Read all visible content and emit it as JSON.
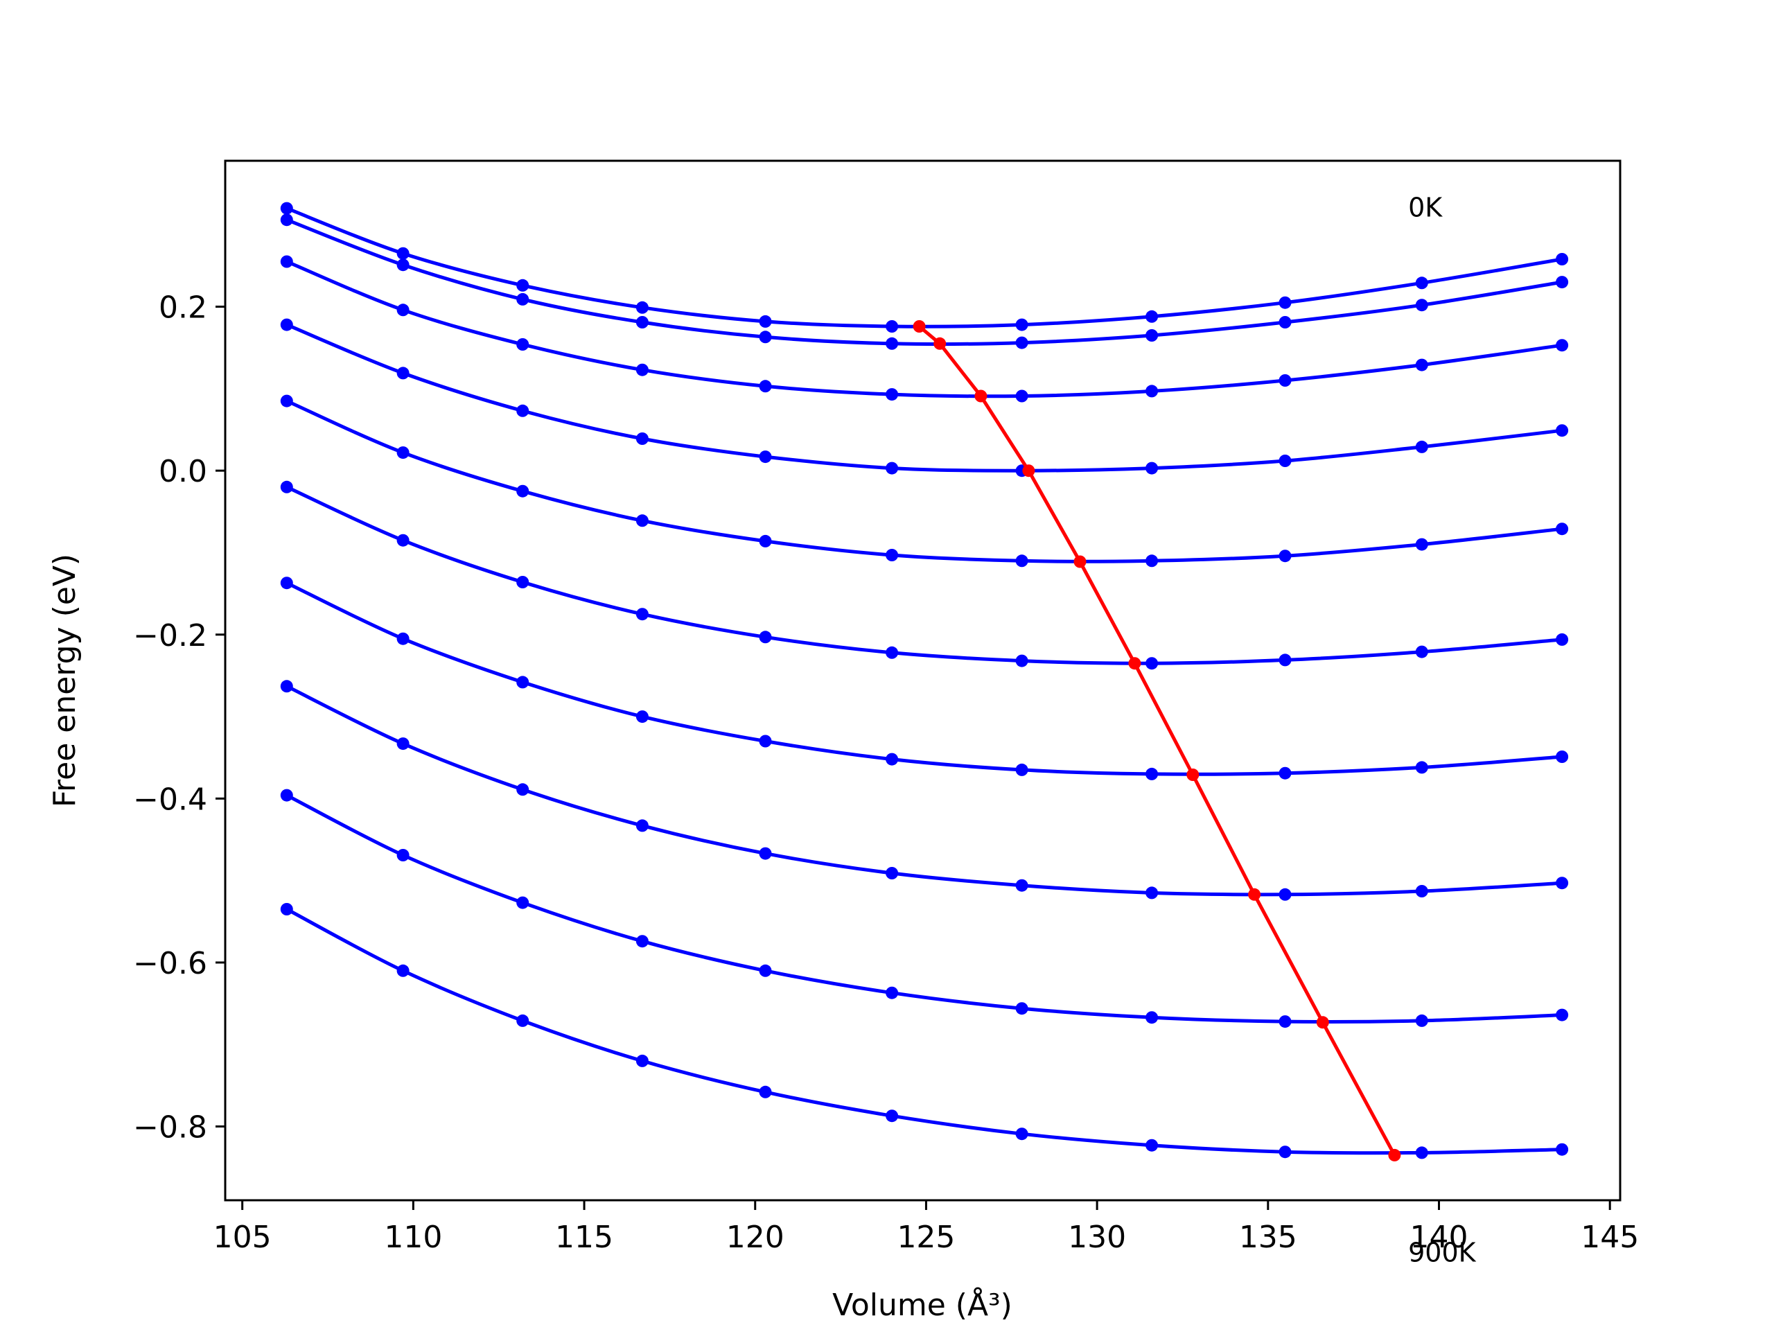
{
  "chart_data": {
    "type": "line",
    "title": "",
    "xlabel": "Volume (Å³)",
    "ylabel": "Free energy (eV)",
    "xlim": [
      104.5,
      145.3
    ],
    "ylim": [
      -0.89,
      0.378
    ],
    "xticks": [
      "105",
      "110",
      "115",
      "120",
      "125",
      "130",
      "135",
      "140",
      "145"
    ],
    "yticks": [
      "−0.8",
      "−0.6",
      "−0.4",
      "−0.2",
      "0.0",
      "0.2"
    ],
    "xtick_values": [
      105,
      110,
      115,
      120,
      125,
      130,
      135,
      140,
      145
    ],
    "ytick_values": [
      -0.8,
      -0.6,
      -0.4,
      -0.2,
      0.0,
      0.2
    ],
    "grid": false,
    "annotations": [
      {
        "text": "0K",
        "x": 139.1,
        "y": 0.31
      },
      {
        "text": "900K",
        "x": 139.1,
        "y": -0.965
      }
    ],
    "x": [
      106.3,
      109.7,
      113.2,
      116.7,
      120.3,
      124.0,
      127.8,
      131.6,
      135.5,
      139.5,
      143.6
    ],
    "series": [
      {
        "color": "#0000ff",
        "values": [
          0.32,
          0.265,
          0.226,
          0.199,
          0.182,
          0.176,
          0.178,
          0.188,
          0.205,
          0.229,
          0.258
        ]
      },
      {
        "color": "#0000ff",
        "values": [
          0.306,
          0.251,
          0.209,
          0.181,
          0.163,
          0.155,
          0.156,
          0.165,
          0.181,
          0.202,
          0.23
        ]
      },
      {
        "color": "#0000ff",
        "values": [
          0.255,
          0.196,
          0.154,
          0.123,
          0.103,
          0.093,
          0.091,
          0.097,
          0.11,
          0.129,
          0.153
        ]
      },
      {
        "color": "#0000ff",
        "values": [
          0.178,
          0.119,
          0.073,
          0.039,
          0.017,
          0.003,
          0.0,
          0.003,
          0.012,
          0.029,
          0.049
        ]
      },
      {
        "color": "#0000ff",
        "values": [
          0.085,
          0.022,
          -0.025,
          -0.061,
          -0.086,
          -0.103,
          -0.11,
          -0.11,
          -0.104,
          -0.09,
          -0.071
        ]
      },
      {
        "color": "#0000ff",
        "values": [
          -0.02,
          -0.085,
          -0.136,
          -0.175,
          -0.203,
          -0.222,
          -0.232,
          -0.235,
          -0.231,
          -0.221,
          -0.206
        ]
      },
      {
        "color": "#0000ff",
        "values": [
          -0.137,
          -0.205,
          -0.258,
          -0.3,
          -0.33,
          -0.352,
          -0.365,
          -0.37,
          -0.369,
          -0.362,
          -0.349
        ]
      },
      {
        "color": "#0000ff",
        "values": [
          -0.263,
          -0.333,
          -0.389,
          -0.433,
          -0.467,
          -0.491,
          -0.506,
          -0.515,
          -0.517,
          -0.513,
          -0.503
        ]
      },
      {
        "color": "#0000ff",
        "values": [
          -0.396,
          -0.469,
          -0.527,
          -0.574,
          -0.61,
          -0.637,
          -0.656,
          -0.667,
          -0.672,
          -0.671,
          -0.664
        ]
      },
      {
        "color": "#0000ff",
        "values": [
          -0.535,
          -0.61,
          -0.671,
          -0.72,
          -0.758,
          -0.787,
          -0.809,
          -0.823,
          -0.831,
          -0.832,
          -0.828
        ]
      }
    ],
    "minima_series": {
      "color": "#ff0000",
      "x": [
        124.8,
        125.4,
        126.6,
        128.0,
        129.5,
        131.1,
        132.8,
        134.6,
        136.6,
        138.7
      ],
      "y": [
        0.176,
        0.155,
        0.091,
        0.0,
        -0.111,
        -0.235,
        -0.371,
        -0.517,
        -0.673,
        -0.835
      ]
    }
  }
}
